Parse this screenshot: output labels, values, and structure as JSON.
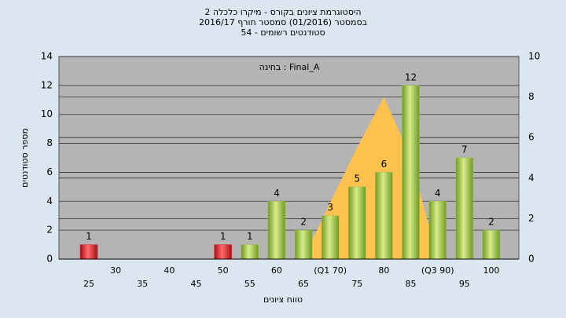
{
  "chart_data": {
    "type": "bar",
    "title_lines": [
      "היסטוגרמת ציונים בקורס - מיקרו כלכלה 2",
      "בסמסטר  (01/2016)  סמסטר חורף 2016/17",
      "סטודנטים רשומים - 54"
    ],
    "annotation": "בחינה : Final_A",
    "xlabel": "טווח ציונים",
    "ylabel": "מספר סטודנטים",
    "categories": [
      "25",
      "30",
      "35",
      "40",
      "45",
      "50",
      "55",
      "60",
      "65",
      "(Q1 70)",
      "75",
      "80",
      "85",
      "(Q3 90)",
      "95",
      "100"
    ],
    "values": [
      1,
      null,
      null,
      null,
      null,
      1,
      1,
      4,
      2,
      3,
      5,
      6,
      12,
      4,
      7,
      2
    ],
    "colors": [
      "#d9262b",
      null,
      null,
      null,
      null,
      "#d9262b",
      "#9cc04a",
      "#9cc04a",
      "#9cc04a",
      "#9cc04a",
      "#9cc04a",
      "#9cc04a",
      "#9cc04a",
      "#9cc04a",
      "#9cc04a",
      "#9cc04a"
    ],
    "area": {
      "axis": "y2",
      "color": "#ffc34d",
      "values": [
        null,
        null,
        null,
        null,
        null,
        null,
        null,
        null,
        0,
        2.8,
        5.5,
        8,
        5,
        0,
        null,
        null
      ]
    },
    "ylim": [
      0,
      14
    ],
    "yticks": [
      0,
      2,
      4,
      6,
      8,
      10,
      12,
      14
    ],
    "y2lim": [
      0,
      10
    ],
    "y2ticks": [
      0,
      2,
      4,
      6,
      8,
      10
    ],
    "grid": true
  }
}
